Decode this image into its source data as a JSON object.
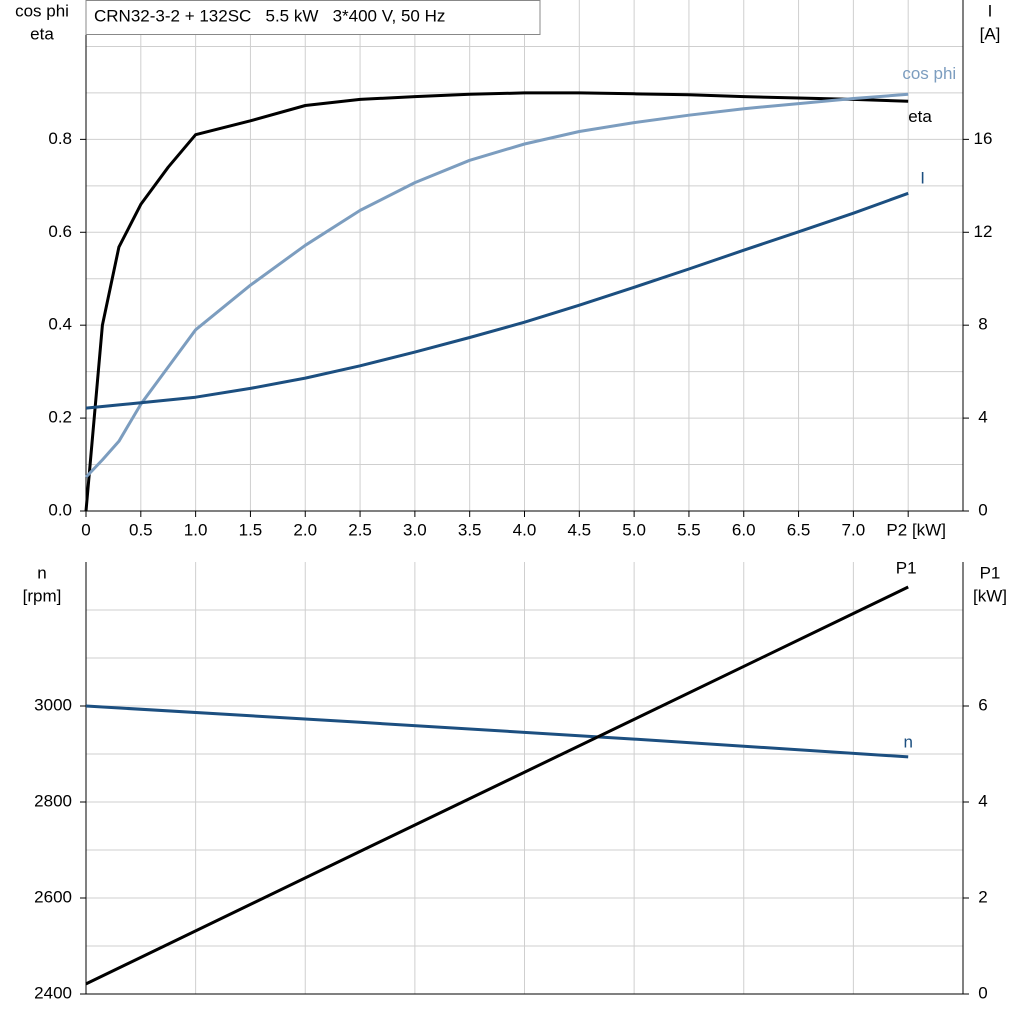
{
  "chart_data": [
    {
      "type": "line",
      "title": "CRN32-3-2 + 132SC   5.5 kW   3*400 V, 50 Hz",
      "y_label": [
        "cos phi",
        "eta"
      ],
      "y2_label": [
        "I",
        "[A]"
      ],
      "x": [
        0,
        0.15,
        0.3,
        0.5,
        0.75,
        1,
        1.5,
        2,
        2.5,
        3,
        3.5,
        4,
        4.5,
        5,
        5.5,
        6,
        6.5,
        7,
        7.5
      ],
      "xlim": [
        0,
        8
      ],
      "xticks": [
        0,
        {
          "value": 0.5,
          "label": "0.5"
        },
        {
          "value": 1,
          "label": "1.0"
        },
        {
          "value": 1.5,
          "label": "1.5"
        },
        {
          "value": 2,
          "label": "2.0"
        },
        {
          "value": 2.5,
          "label": "2.5"
        },
        {
          "value": 3,
          "label": "3.0"
        },
        {
          "value": 3.5,
          "label": "3.5"
        },
        {
          "value": 4,
          "label": "4.0"
        },
        {
          "value": 4.5,
          "label": "4.5"
        },
        {
          "value": 5,
          "label": "5.0"
        },
        {
          "value": 5.5,
          "label": "5.5"
        },
        {
          "value": 6,
          "label": "6.0"
        },
        {
          "value": 6.5,
          "label": "6.5"
        },
        {
          "value": 7,
          "label": "7.0"
        },
        {
          "value": 7.5,
          "label": "P2 [kW]"
        }
      ],
      "ylim": [
        0,
        1.1
      ],
      "yticks": [
        {
          "value": 0,
          "label": "0.0"
        },
        {
          "value": 0.2,
          "label": "0.2"
        },
        {
          "value": 0.4,
          "label": "0.4"
        },
        {
          "value": 0.6,
          "label": "0.6"
        },
        {
          "value": 0.8,
          "label": "0.8"
        }
      ],
      "ygrid": [
        0.1,
        0.3,
        0.5,
        0.7,
        0.9,
        1.0
      ],
      "y2lim": [
        0,
        22
      ],
      "y2ticks": [
        0,
        4,
        8,
        12,
        16
      ],
      "grid": true,
      "series": [
        {
          "name": "eta",
          "color": "#000000",
          "values": [
            0.0,
            0.4,
            0.568,
            0.66,
            0.74,
            0.81,
            0.84,
            0.873,
            0.886,
            0.892,
            0.897,
            0.9,
            0.9,
            0.898,
            0.896,
            0.892,
            0.889,
            0.886,
            0.882
          ]
        },
        {
          "name": "cos phi",
          "color": "#7c9dbf",
          "values": [
            0.073,
            0.11,
            0.15,
            0.23,
            0.31,
            0.39,
            0.486,
            0.572,
            0.647,
            0.707,
            0.755,
            0.79,
            0.817,
            0.836,
            0.852,
            0.866,
            0.877,
            0.888,
            0.897
          ]
        },
        {
          "name": "I",
          "color": "#1c4f80",
          "axis": "y2",
          "values": [
            4.43,
            4.5,
            4.57,
            4.66,
            4.78,
            4.9,
            5.28,
            5.72,
            6.25,
            6.84,
            7.47,
            8.13,
            8.86,
            9.63,
            10.42,
            11.23,
            12.02,
            12.82,
            13.68
          ]
        }
      ]
    },
    {
      "type": "line",
      "y_label": [
        "n",
        "[rpm]"
      ],
      "y2_label": [
        "P1",
        "[kW]"
      ],
      "x": [
        0,
        2.5,
        5,
        7.5
      ],
      "xlim": [
        0,
        8
      ],
      "xgrid": [
        1,
        2,
        3,
        4,
        5,
        6,
        7
      ],
      "ylim": [
        2400,
        3300
      ],
      "yticks": [
        2400,
        2600,
        2800,
        3000
      ],
      "ygrid": [
        2500,
        2700,
        2900,
        3100,
        3200
      ],
      "y2lim": [
        0,
        9
      ],
      "y2ticks": [
        0,
        2,
        4,
        6
      ],
      "grid": true,
      "series": [
        {
          "name": "n",
          "color": "#1c4f80",
          "values": [
            3000,
            2966,
            2931,
            2894
          ]
        },
        {
          "name": "P1",
          "color": "#000000",
          "axis": "y2",
          "values": [
            0.21,
            2.97,
            5.72,
            8.48
          ]
        }
      ]
    }
  ]
}
